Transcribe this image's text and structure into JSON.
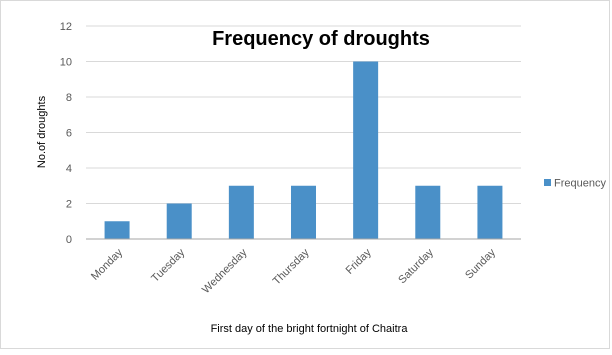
{
  "chart_data": {
    "type": "bar",
    "title": "Frequency of droughts",
    "xlabel": "First day of the bright fortnight of Chaitra",
    "ylabel": "No.of droughts",
    "categories": [
      "Monday",
      "Tuesday",
      "Wednesday",
      "Thursday",
      "Friday",
      "Saturday",
      "Sunday"
    ],
    "series": [
      {
        "name": "Frequency",
        "values": [
          1,
          2,
          3,
          3,
          10,
          3,
          3
        ]
      }
    ],
    "ylim": [
      0,
      12
    ],
    "yticks": [
      0,
      2,
      4,
      6,
      8,
      10,
      12
    ],
    "grid": true,
    "legend_position": "right",
    "colors": {
      "bar": "#4a90c8",
      "grid": "#d9d9d9",
      "axis": "#a6a6a6"
    }
  }
}
